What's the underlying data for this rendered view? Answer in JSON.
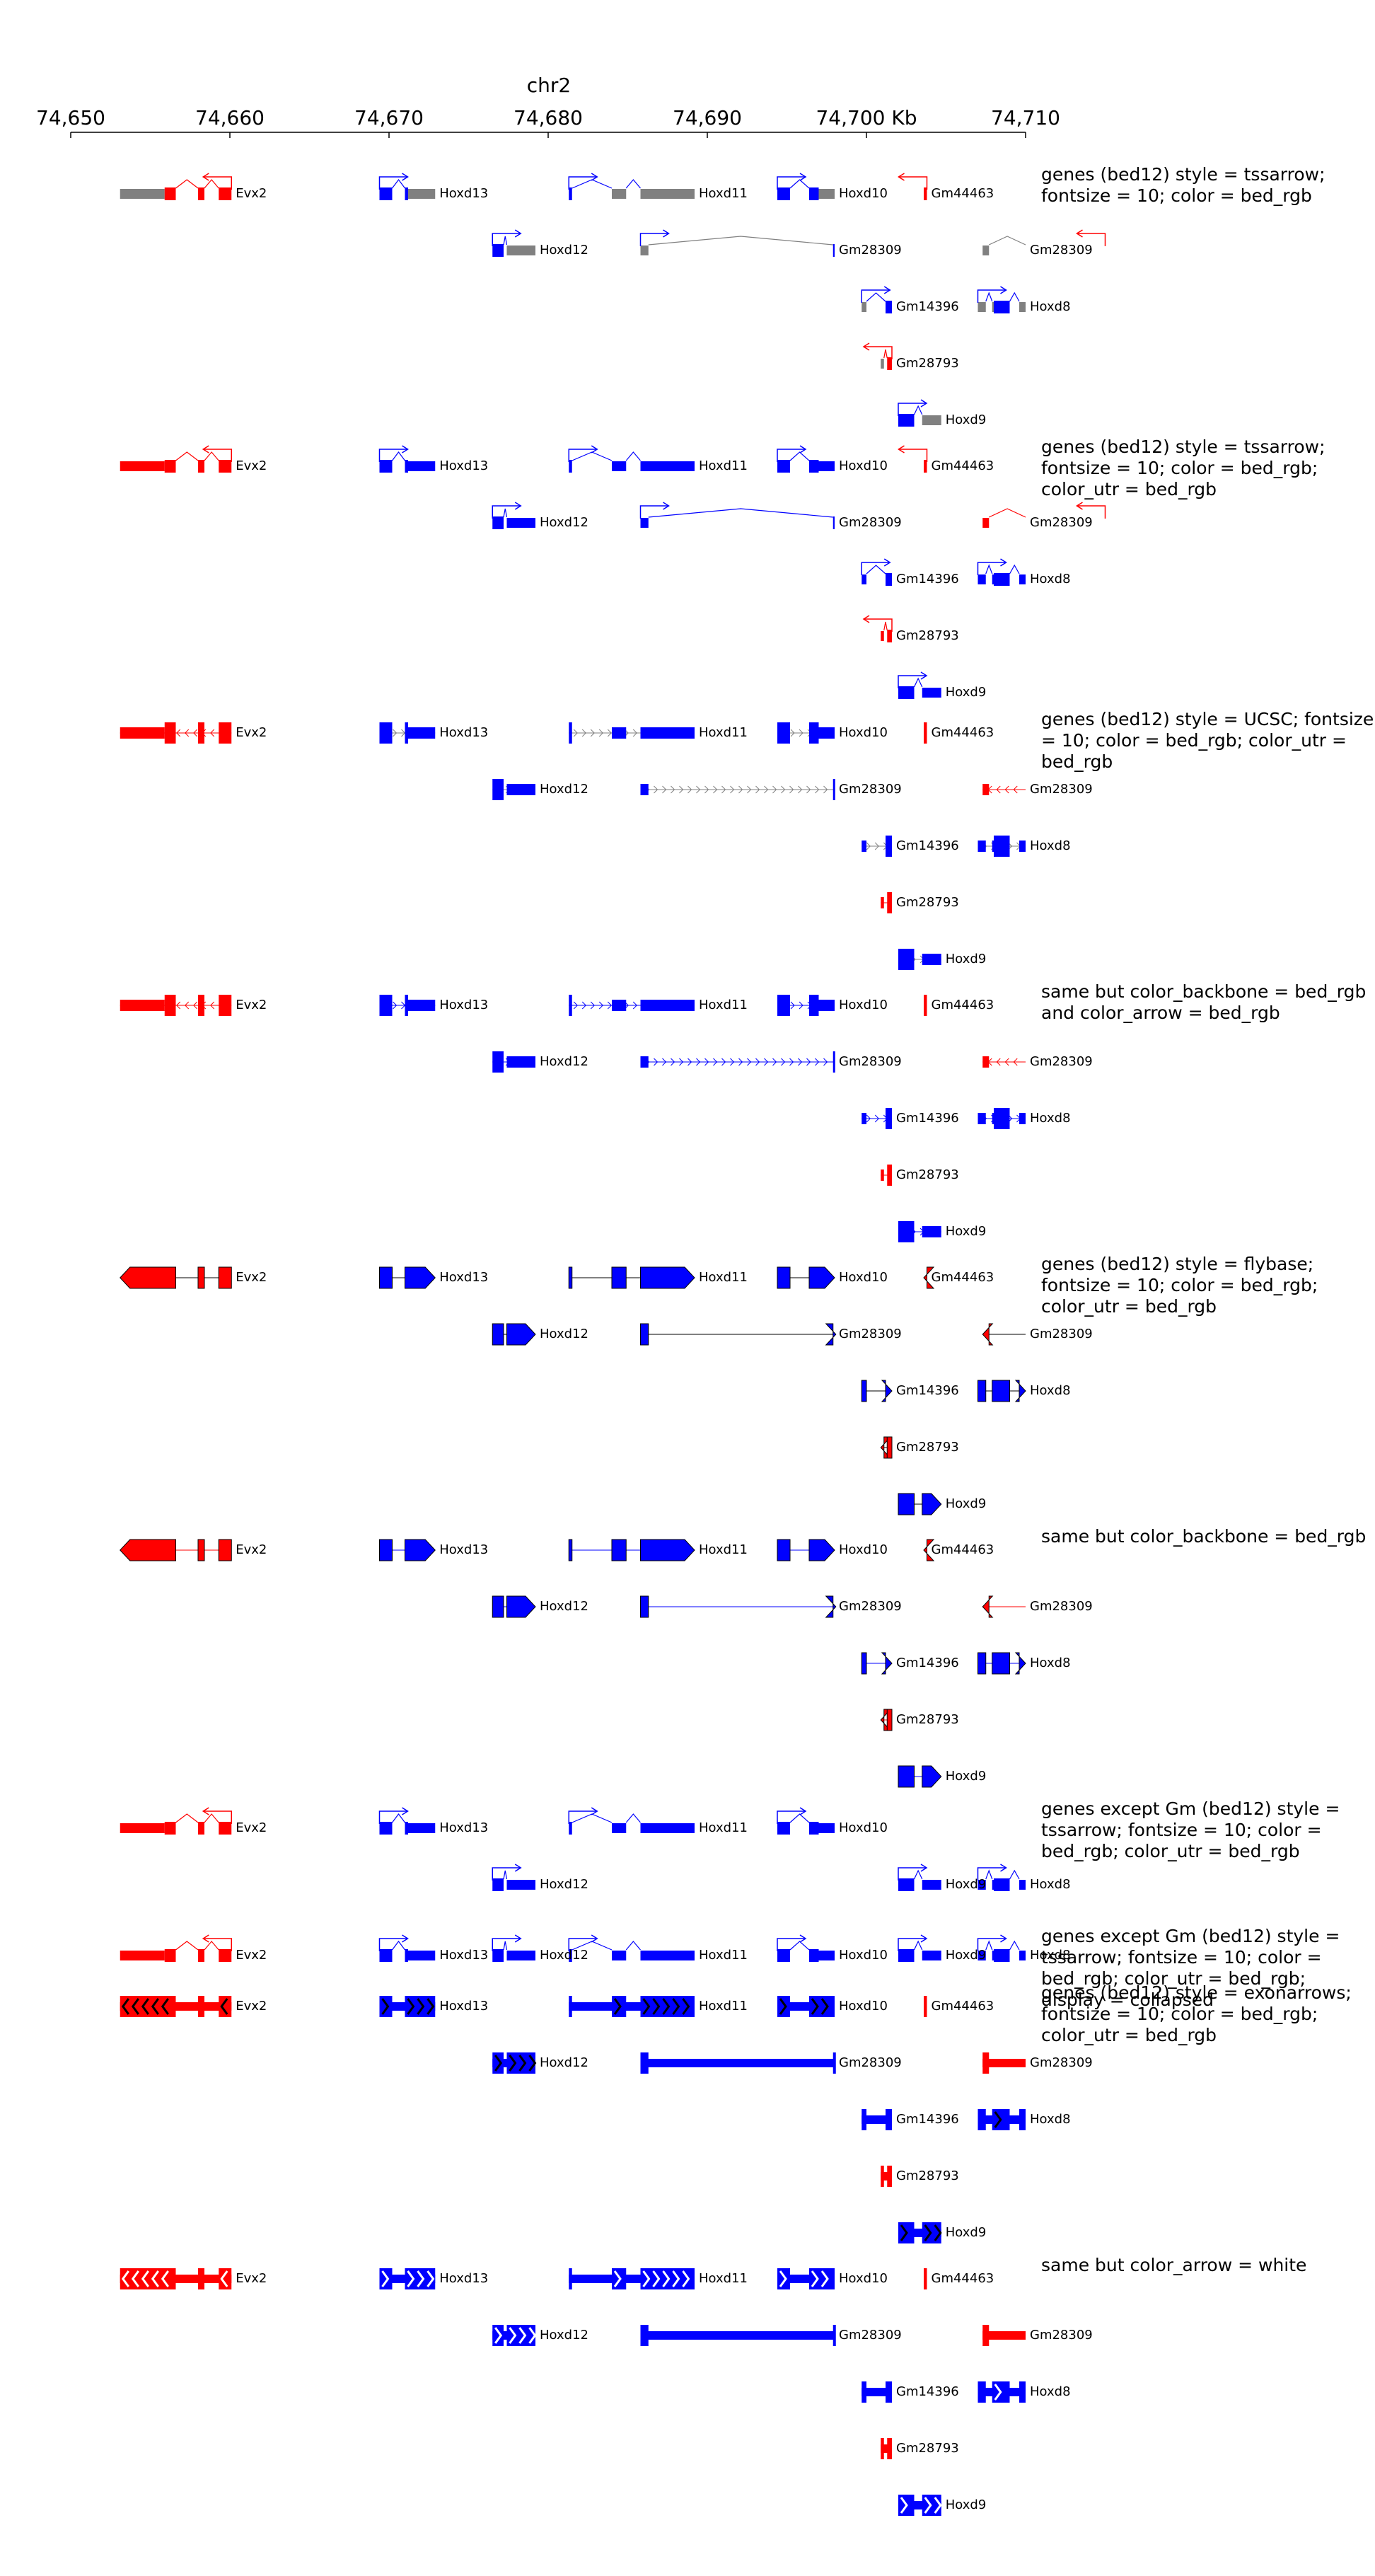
{
  "chromosome": "chr2",
  "axis": {
    "start": 74650,
    "end": 74710,
    "tick_labels": [
      "74,650",
      "74,660",
      "74,670",
      "74,680",
      "74,690",
      "74,700 Kb",
      "74,710"
    ]
  },
  "colors": {
    "red": "#ff0000",
    "blue": "#0000ff",
    "grey": "#808080",
    "black": "#000000",
    "white": "#ffffff"
  },
  "genes": [
    {
      "name": "Evx2",
      "strand": "-",
      "color": "red",
      "row": 0,
      "start": 74653.1,
      "end": 74660.1,
      "utr": [
        [
          74653.1,
          74655.9
        ]
      ],
      "exons": [
        [
          74653.1,
          74656.6
        ],
        [
          74658.0,
          74658.4
        ],
        [
          74659.3,
          74660.1
        ]
      ]
    },
    {
      "name": "Hoxd13",
      "strand": "+",
      "color": "blue",
      "row": 0,
      "start": 74669.4,
      "end": 74672.9,
      "utr": [
        [
          74671.2,
          74672.9
        ]
      ],
      "exons": [
        [
          74669.4,
          74670.2
        ],
        [
          74671.0,
          74672.9
        ]
      ]
    },
    {
      "name": "Hoxd11",
      "strand": "+",
      "color": "blue",
      "row": 0,
      "start": 74681.3,
      "end": 74689.2,
      "utr": [
        [
          74684.0,
          74689.2
        ]
      ],
      "exons": [
        [
          74681.3,
          74681.5
        ],
        [
          74684.0,
          74684.9
        ],
        [
          74685.8,
          74689.2
        ]
      ]
    },
    {
      "name": "Hoxd10",
      "strand": "+",
      "color": "blue",
      "row": 0,
      "start": 74694.4,
      "end": 74698.0,
      "utr": [
        [
          74697.0,
          74698.0
        ]
      ],
      "exons": [
        [
          74694.4,
          74695.2
        ],
        [
          74696.4,
          74698.0
        ]
      ]
    },
    {
      "name": "Gm44463",
      "strand": "-",
      "color": "red",
      "row": 0,
      "start": 74703.6,
      "end": 74703.8,
      "utr": [],
      "exons": [
        [
          74703.6,
          74703.8
        ]
      ]
    },
    {
      "name": "Hoxd12",
      "strand": "+",
      "color": "blue",
      "row": 1,
      "start": 74676.5,
      "end": 74679.2,
      "utr": [
        [
          74677.4,
          74679.2
        ]
      ],
      "exons": [
        [
          74676.5,
          74677.2
        ],
        [
          74677.4,
          74679.2
        ]
      ]
    },
    {
      "name": "Gm28309",
      "strand": "+",
      "color": "blue",
      "row": 1,
      "start": 74685.8,
      "end": 74698.0,
      "utr": [
        [
          74685.8,
          74686.3
        ]
      ],
      "exons": [
        [
          74685.8,
          74686.3
        ],
        [
          74697.9,
          74698.0
        ]
      ]
    },
    {
      "name": "Gm28309",
      "strand": "-",
      "color": "red",
      "row": 1,
      "start": 74707.3,
      "end": 74715.0,
      "utr": [
        [
          74707.3,
          74707.7
        ]
      ],
      "exons": [
        [
          74707.3,
          74707.7
        ]
      ]
    },
    {
      "name": "Gm14396",
      "strand": "+",
      "color": "blue",
      "row": 2,
      "start": 74699.7,
      "end": 74701.6,
      "utr": [
        [
          74699.7,
          74700.0
        ]
      ],
      "exons": [
        [
          74699.7,
          74700.0
        ],
        [
          74701.2,
          74701.6
        ]
      ]
    },
    {
      "name": "Hoxd8",
      "strand": "+",
      "color": "blue",
      "row": 2,
      "start": 74707.0,
      "end": 74710.6,
      "utr": [
        [
          74707.0,
          74708.0
        ],
        [
          74709.6,
          74710.6
        ]
      ],
      "exons": [
        [
          74707.0,
          74707.5
        ],
        [
          74707.9,
          74709.0
        ],
        [
          74709.6,
          74710.6
        ]
      ]
    },
    {
      "name": "Gm28793",
      "strand": "-",
      "color": "red",
      "row": 3,
      "start": 74700.9,
      "end": 74701.6,
      "utr": [
        [
          74700.9,
          74701.1
        ]
      ],
      "exons": [
        [
          74700.9,
          74701.1
        ],
        [
          74701.3,
          74701.6
        ]
      ]
    },
    {
      "name": "Hoxd9",
      "strand": "+",
      "color": "blue",
      "row": 4,
      "start": 74702.0,
      "end": 74704.7,
      "utr": [
        [
          74703.5,
          74704.7
        ]
      ],
      "exons": [
        [
          74702.0,
          74703.0
        ],
        [
          74703.5,
          74704.7
        ]
      ]
    }
  ],
  "tracks": [
    {
      "label": "genes (bed12) style = tssarrow; fontsize = 10; color = bed_rgb",
      "style": "tssarrow",
      "utr_grey": true,
      "subset": "all",
      "display": "stacked",
      "backbone": "default",
      "arrow": "default"
    },
    {
      "label": "genes (bed12) style = tssarrow; fontsize = 10; color = bed_rgb; color_utr = bed_rgb",
      "style": "tssarrow",
      "utr_grey": false,
      "subset": "all",
      "display": "stacked",
      "backbone": "default",
      "arrow": "default"
    },
    {
      "label": "genes (bed12) style = UCSC; fontsize = 10; color = bed_rgb; color_utr = bed_rgb",
      "style": "ucsc",
      "utr_grey": false,
      "subset": "all",
      "display": "stacked",
      "backbone": "default",
      "arrow": "default"
    },
    {
      "label": "same but color_backbone = bed_rgb and color_arrow = bed_rgb",
      "style": "ucsc",
      "utr_grey": false,
      "subset": "all",
      "display": "stacked",
      "backbone": "gene",
      "arrow": "gene"
    },
    {
      "label": "genes (bed12) style = flybase; fontsize = 10; color = bed_rgb; color_utr = bed_rgb",
      "style": "flybase",
      "utr_grey": false,
      "subset": "all",
      "display": "stacked",
      "backbone": "default",
      "arrow": "default"
    },
    {
      "label": "same but color_backbone = bed_rgb",
      "style": "flybase",
      "utr_grey": false,
      "subset": "all",
      "display": "stacked",
      "backbone": "gene",
      "arrow": "default"
    },
    {
      "label": "genes except Gm (bed12) style = tssarrow; fontsize = 10; color = bed_rgb; color_utr = bed_rgb",
      "style": "tssarrow",
      "utr_grey": false,
      "subset": "noGm",
      "display": "stacked",
      "backbone": "default",
      "arrow": "default"
    },
    {
      "label": "genes except Gm (bed12) style = tssarrow; fontsize = 10; color = bed_rgb; color_utr = bed_rgb; display = collapsed",
      "style": "tssarrow",
      "utr_grey": false,
      "subset": "noGm",
      "display": "collapsed",
      "backbone": "default",
      "arrow": "default"
    },
    {
      "label": "genes (bed12) style = exonarrows; fontsize = 10; color = bed_rgb; color_utr = bed_rgb",
      "style": "exonarrows",
      "utr_grey": false,
      "subset": "all",
      "display": "stacked",
      "backbone": "default",
      "arrow": "black"
    },
    {
      "label": "same but color_arrow = white",
      "style": "exonarrows",
      "utr_grey": false,
      "subset": "all",
      "display": "stacked",
      "backbone": "default",
      "arrow": "white"
    }
  ]
}
